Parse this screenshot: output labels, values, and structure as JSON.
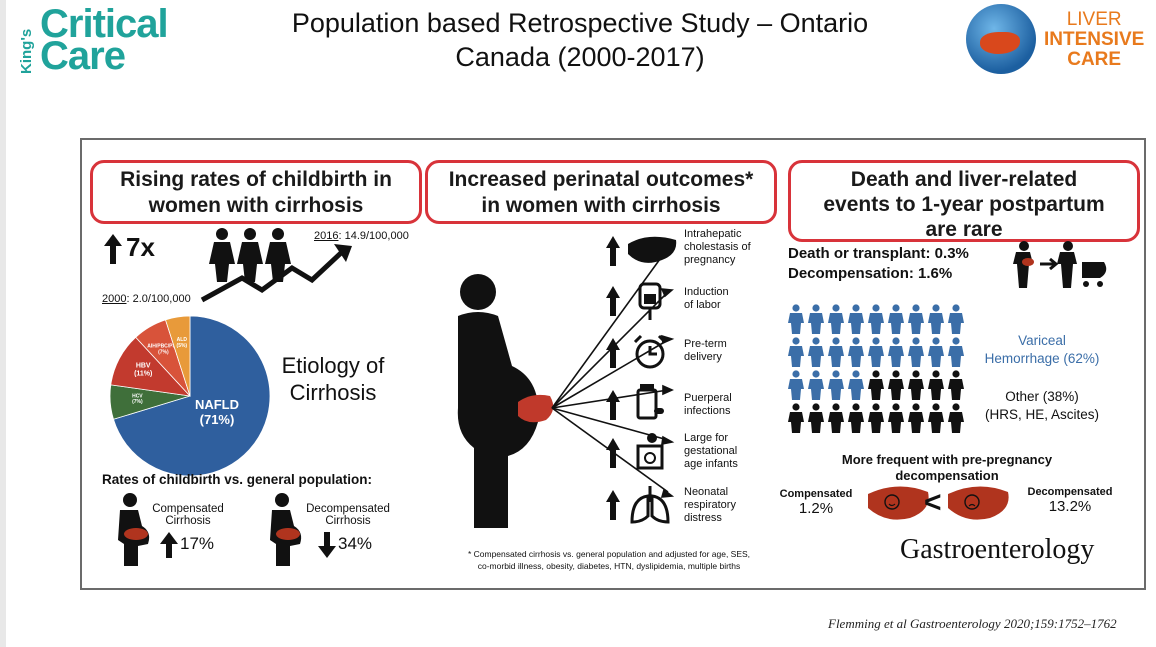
{
  "slide": {
    "title_line1": "Population based Retrospective Study – Ontario",
    "title_line2": "Canada (2000-2017)",
    "citation": "Flemming et al Gastroenterology 2020;159:1752–1762"
  },
  "logos": {
    "left": {
      "kings": "King's",
      "critical": "Critical",
      "care": "Care"
    },
    "right": {
      "line1": "LIVER",
      "line2": "INTENSIVE",
      "line3": "CARE"
    }
  },
  "panel1": {
    "heading_line1": "Rising rates of childbirth in",
    "heading_line2": "women with cirrhosis",
    "multiplier": "7x",
    "year_2016": "2016",
    "rate_2016": ": 14.9/100,000",
    "year_2000": "2000",
    "rate_2000": ": 2.0/100,000",
    "etiology_line1": "Etiology of",
    "etiology_line2": "Cirrhosis",
    "rates_heading": "Rates of childbirth vs. general population:",
    "compensated_line1": "Compensated",
    "compensated_line2": "Cirrhosis",
    "compensated_value": "17%",
    "decompensated_line1": "Decompensated",
    "decompensated_line2": "Cirrhosis",
    "decompensated_value": "34%"
  },
  "chart_data": {
    "type": "pie",
    "categories": [
      "NAFLD",
      "HCV",
      "HBV",
      "AIH/PBC/PSC",
      "ALD"
    ],
    "labels": [
      "NAFLD\n(71%)",
      "HCV\n(7%)",
      "HBV\n(11%)",
      "AIH/PBC/PSC\n(7%)",
      "ALD\n(5%)"
    ],
    "values": [
      71,
      7,
      11,
      7,
      5
    ],
    "colors": [
      "#2f5f9e",
      "#3f6f3a",
      "#c23a2e",
      "#d8533a",
      "#e89a3a"
    ]
  },
  "panel2": {
    "heading_line1": "Increased perinatal outcomes*",
    "heading_line2": "in women with cirrhosis",
    "outcomes": [
      {
        "l1": "Intrahepatic",
        "l2": "cholestasis of",
        "l3": "pregnancy"
      },
      {
        "l1": "Induction",
        "l2": "of labor",
        "l3": ""
      },
      {
        "l1": "Pre-term",
        "l2": "delivery",
        "l3": ""
      },
      {
        "l1": "Puerperal",
        "l2": "infections",
        "l3": ""
      },
      {
        "l1": "Large for",
        "l2": "gestational",
        "l3": "age infants"
      },
      {
        "l1": "Neonatal",
        "l2": "respiratory",
        "l3": "distress"
      }
    ],
    "footnote_line1": "* Compensated cirrhosis vs. general population and adjusted for age, SES,",
    "footnote_line2": "co-morbid illness, obesity, diabetes, HTN, dyslipidemia, multiple births"
  },
  "panel3": {
    "heading_line1": "Death and liver-related",
    "heading_line2": "events to 1-year postpartum",
    "heading_line3": "are rare",
    "death_text": "Death or transplant: 0.3%",
    "decomp_text": "Decompensation: 1.6%",
    "variceal_line1": "Variceal",
    "variceal_line2": "Hemorrhage (62%)",
    "other_line1": "Other (38%)",
    "other_line2": "(HRS, HE, Ascites)",
    "more_line1": "More frequent with pre-pregnancy",
    "more_line2": "decompensation",
    "compensated_label": "Compensated",
    "compensated_value": "1.2%",
    "less_than": "<",
    "decompensated_label": "Decompensated",
    "decompensated_value": "13.2%",
    "journal": "Gastroenterology",
    "figure_fraction_blue": 0.62
  }
}
